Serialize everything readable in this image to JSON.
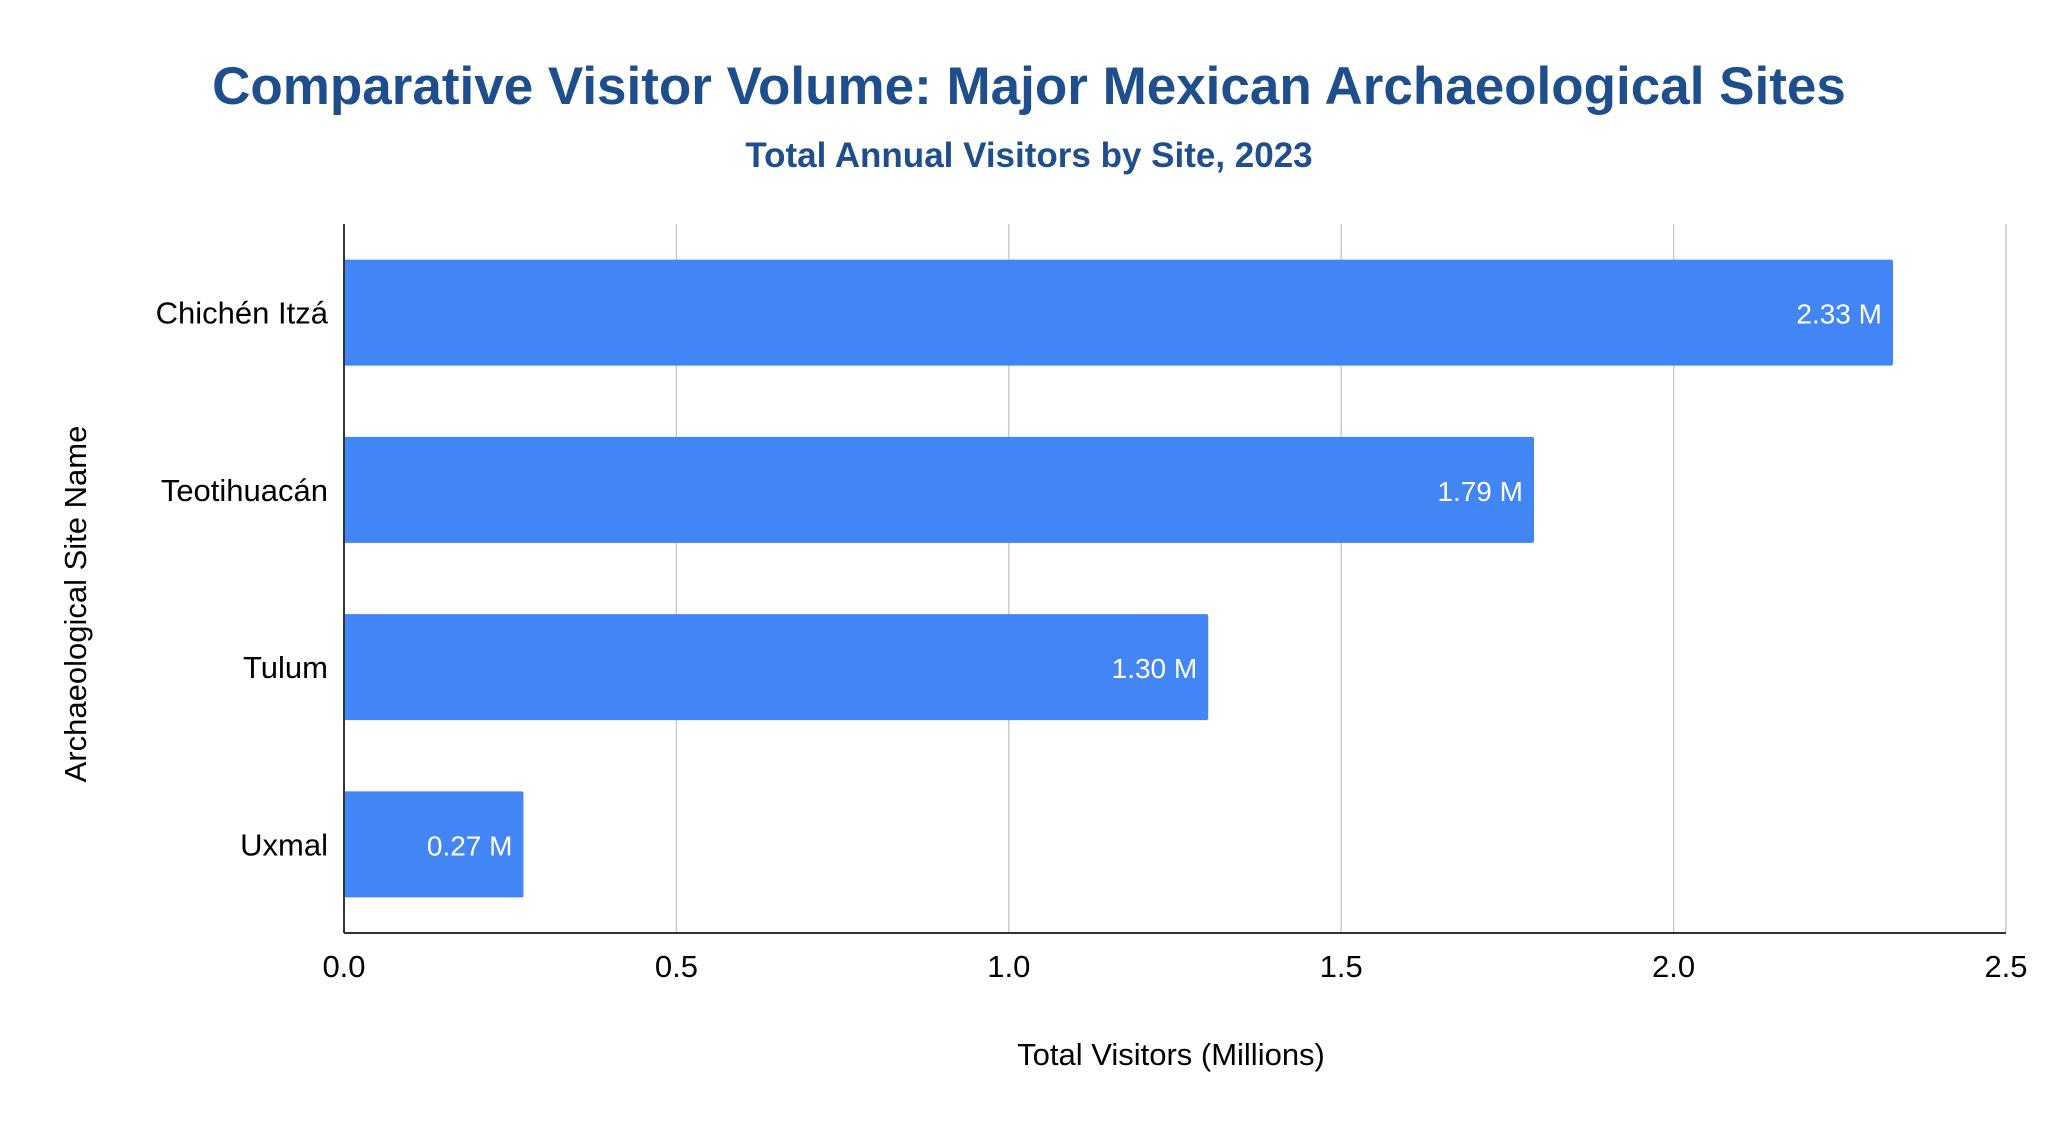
{
  "chart_data": {
    "type": "bar",
    "orientation": "horizontal",
    "title": "Comparative Visitor Volume: Major Mexican Archaeological Sites",
    "subtitle": "Total Annual Visitors by Site, 2023",
    "xlabel": "Total Visitors (Millions)",
    "ylabel": "Archaeological Site Name",
    "categories": [
      "Chichén Itzá",
      "Teotihuacán",
      "Tulum",
      "Uxmal"
    ],
    "values": [
      2.33,
      1.79,
      1.3,
      0.27
    ],
    "data_labels": [
      "2.33 M",
      "1.79 M",
      "1.30 M",
      "0.27 M"
    ],
    "xlim": [
      0,
      2.5
    ],
    "xticks": [
      0,
      0.5,
      1.0,
      1.5,
      2.0,
      2.5
    ],
    "xtick_labels": [
      "0.0",
      "0.5",
      "1.0",
      "1.5",
      "2.0",
      "2.5"
    ],
    "grid": true,
    "legend": "none",
    "colors": {
      "bar": "#4285F4",
      "title": "#1F4E8C",
      "data_label": "#FFFFFF",
      "text": "#000000",
      "grid": "#CCCCCC",
      "axis": "#333333"
    }
  }
}
